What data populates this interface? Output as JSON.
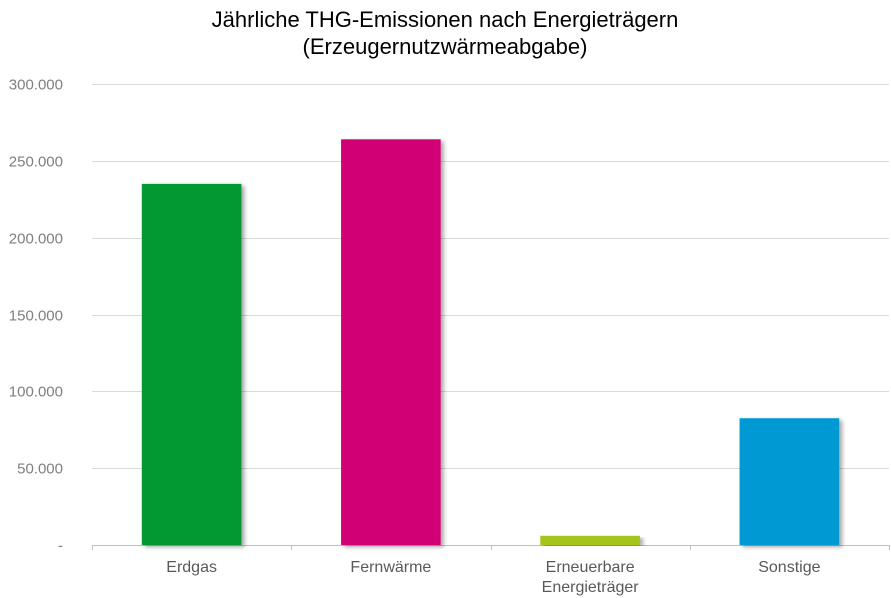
{
  "chart_data": {
    "type": "bar",
    "title": [
      "Jährliche THG-Emissionen nach Energieträgern",
      "(Erzeugernutzwärmeabgabe)"
    ],
    "categories": [
      [
        "Erdgas"
      ],
      [
        "Fernwärme"
      ],
      [
        "Erneuerbare",
        "Energieträger"
      ],
      [
        "Sonstige"
      ]
    ],
    "values": [
      235000,
      264000,
      6000,
      82500
    ],
    "colors": [
      "#009933",
      "#d10074",
      "#a3c51a",
      "#0099d4"
    ],
    "ylim": [
      0,
      300000
    ],
    "yticks": [
      0,
      50000,
      100000,
      150000,
      200000,
      250000,
      300000
    ],
    "ytick_labels": [
      "-",
      "50.000",
      "100.000",
      "150.000",
      "200.000",
      "250.000",
      "300.000"
    ],
    "xlabel": "",
    "ylabel": "",
    "grid": true,
    "legend": "none"
  }
}
